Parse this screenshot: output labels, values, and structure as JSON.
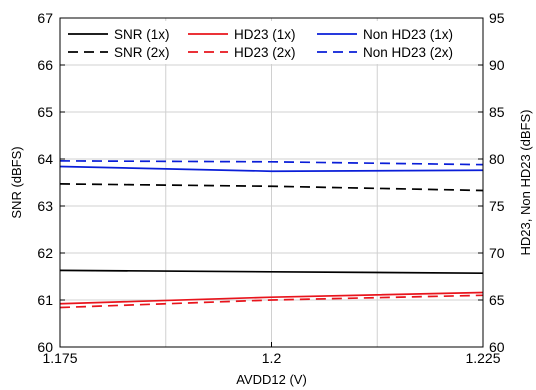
{
  "chart_data": {
    "type": "line",
    "xlabel": "AVDD12 (V)",
    "ylabel_left": "SNR (dBFS)",
    "ylabel_right": "HD23, Non HD23 (dBFS)",
    "x_ticks": [
      "1.175",
      "1.2",
      "1.225"
    ],
    "xlim": [
      1.175,
      1.225
    ],
    "x_grid": [
      1.175,
      1.1875,
      1.2,
      1.2125,
      1.225
    ],
    "ylim_left": [
      60,
      67
    ],
    "yticks_left": [
      "60",
      "61",
      "62",
      "63",
      "64",
      "65",
      "66",
      "67"
    ],
    "ylim_right": [
      60,
      95
    ],
    "yticks_right": [
      "60",
      "65",
      "70",
      "75",
      "80",
      "85",
      "90",
      "95"
    ],
    "grid": true,
    "legend_position": "top",
    "series": [
      {
        "name": "SNR (1x)",
        "axis": "left",
        "color": "#000000",
        "dash": "solid",
        "x": [
          1.175,
          1.2,
          1.225
        ],
        "y": [
          61.63,
          61.6,
          61.57
        ]
      },
      {
        "name": "HD23 (1x)",
        "axis": "right",
        "color": "#e8141c",
        "dash": "solid",
        "x": [
          1.175,
          1.2,
          1.225
        ],
        "y": [
          64.6,
          65.3,
          65.8
        ]
      },
      {
        "name": "Non HD23 (1x)",
        "axis": "right",
        "color": "#0a1ed8",
        "dash": "solid",
        "x": [
          1.175,
          1.2,
          1.225
        ],
        "y": [
          79.2,
          78.7,
          78.8
        ]
      },
      {
        "name": "SNR (2x)",
        "axis": "left",
        "color": "#000000",
        "dash": "dashed",
        "x": [
          1.175,
          1.2,
          1.225
        ],
        "y": [
          63.47,
          63.42,
          63.33
        ]
      },
      {
        "name": "HD23 (2x)",
        "axis": "right",
        "color": "#e8141c",
        "dash": "dashed",
        "x": [
          1.175,
          1.2,
          1.225
        ],
        "y": [
          64.2,
          65.0,
          65.5
        ]
      },
      {
        "name": "Non HD23 (2x)",
        "axis": "right",
        "color": "#0a1ed8",
        "dash": "dashed",
        "x": [
          1.175,
          1.2,
          1.225
        ],
        "y": [
          79.8,
          79.7,
          79.4
        ]
      }
    ]
  }
}
